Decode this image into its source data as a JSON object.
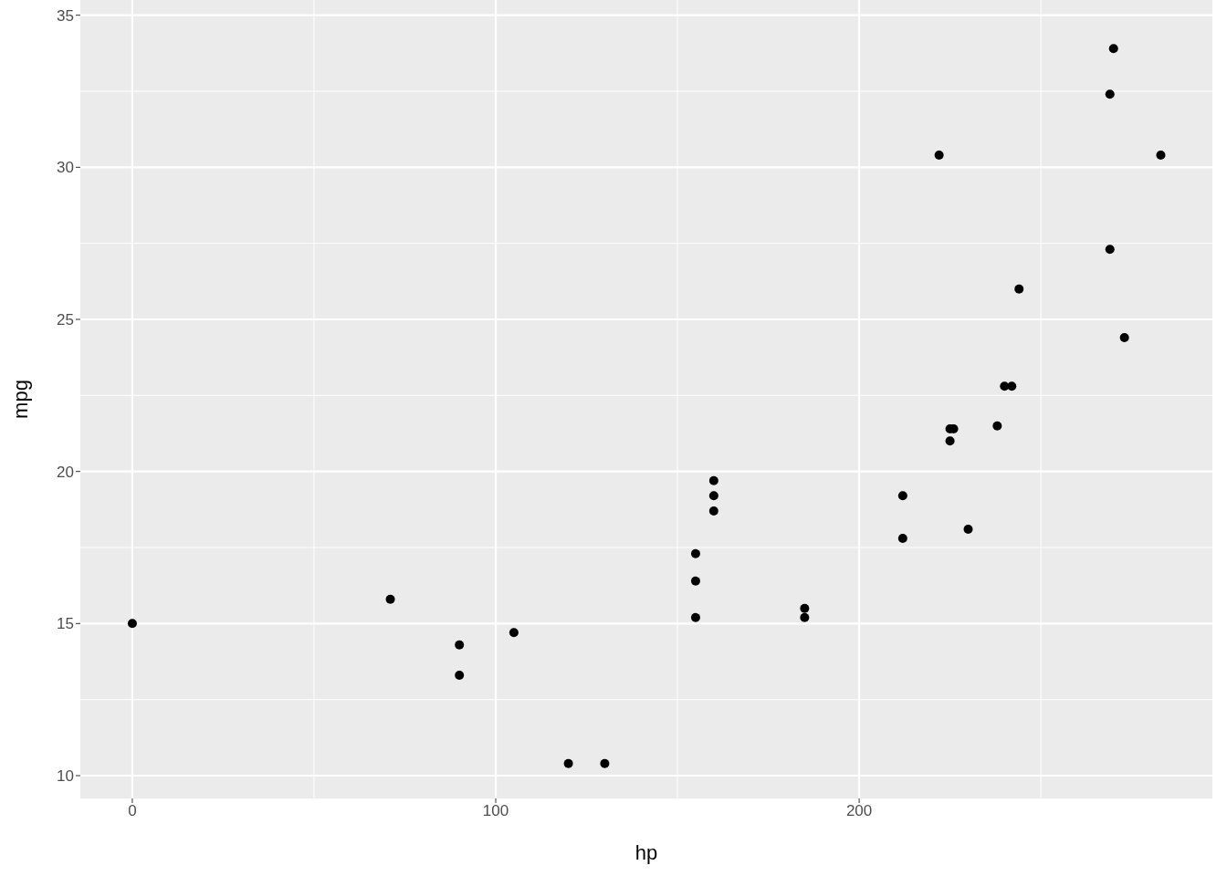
{
  "chart_data": {
    "type": "scatter",
    "xlabel": "hp",
    "ylabel": "mpg",
    "x": [
      0,
      71,
      90,
      90,
      105,
      120,
      130,
      155,
      155,
      155,
      160,
      160,
      160,
      185,
      185,
      212,
      212,
      222,
      225,
      226,
      225,
      230,
      238,
      240,
      242,
      244,
      269,
      270,
      269,
      273,
      283
    ],
    "values": [
      15.0,
      15.8,
      14.3,
      13.3,
      14.7,
      10.4,
      10.4,
      17.3,
      16.4,
      15.2,
      19.7,
      19.2,
      18.7,
      15.5,
      15.2,
      19.2,
      17.8,
      30.4,
      21.4,
      21.4,
      21.0,
      18.1,
      21.5,
      22.8,
      22.8,
      26.0,
      32.4,
      33.9,
      27.3,
      24.4,
      30.4
    ],
    "color": "#000000",
    "marker": "circle",
    "grid": true,
    "xlim": [
      -14.3,
      297.2
    ],
    "xticks": [
      0,
      100,
      200
    ],
    "ylim": [
      9.25,
      35.5
    ],
    "yticks": [
      10,
      15,
      20,
      25,
      30,
      35
    ]
  }
}
